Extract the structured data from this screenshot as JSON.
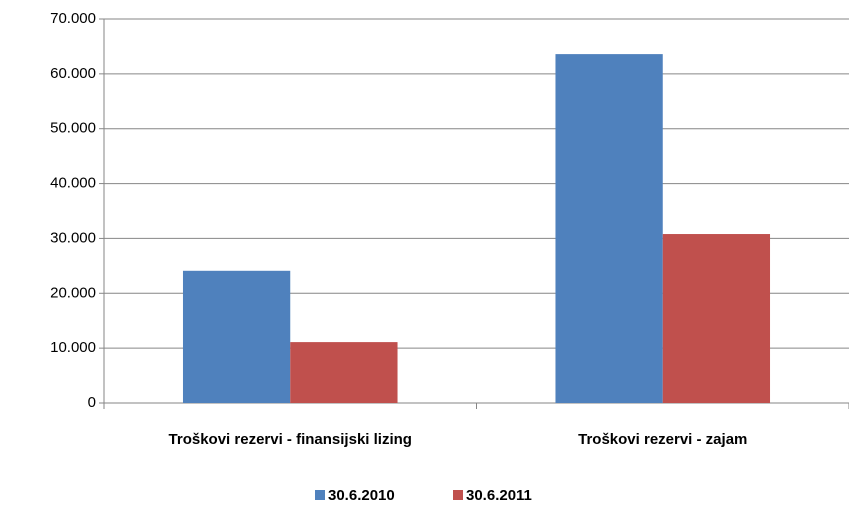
{
  "chart_data": {
    "type": "bar",
    "categories": [
      "Troškovi rezervi - finansijski lizing",
      "Troškovi rezervi - zajam"
    ],
    "series": [
      {
        "name": "30.6.2010",
        "color": "#4f81bd",
        "values": [
          24100,
          63600
        ]
      },
      {
        "name": "30.6.2011",
        "color": "#c0504d",
        "values": [
          11100,
          30800
        ]
      }
    ],
    "ylim": [
      0,
      70000
    ],
    "yticks": [
      0,
      {
        "value": 10000,
        "label": "10.000"
      },
      {
        "value": 20000,
        "label": "20.000"
      },
      {
        "value": 30000,
        "label": "30.000"
      },
      {
        "value": 40000,
        "label": "40.000"
      },
      {
        "value": 50000,
        "label": "50.000"
      },
      {
        "value": 60000,
        "label": "60.000"
      },
      {
        "value": 70000,
        "label": "70.000"
      }
    ],
    "grid": true,
    "legend": "bottom"
  }
}
